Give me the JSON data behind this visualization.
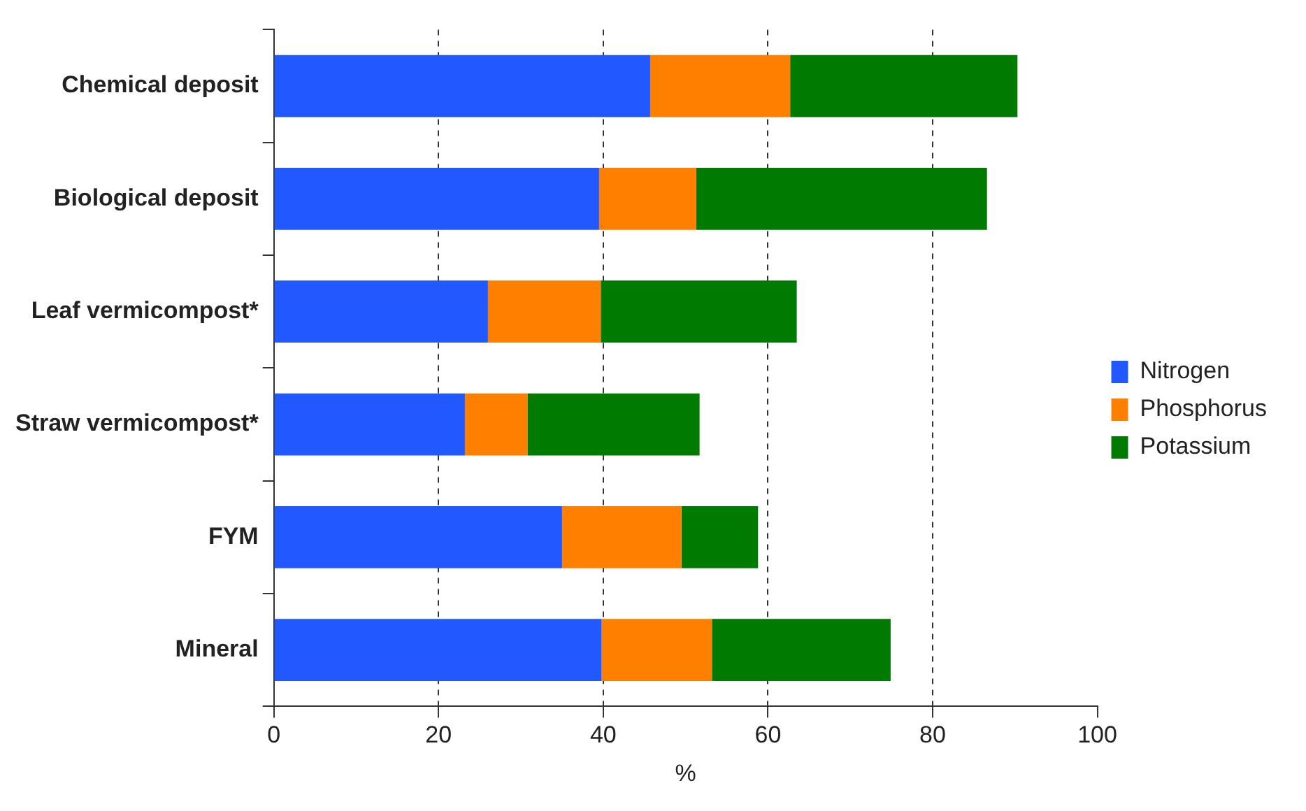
{
  "chart_data": {
    "type": "bar",
    "orientation": "horizontal",
    "stacked": true,
    "xlabel": "%",
    "categories": [
      "Chemical deposit",
      "Biological deposit",
      "Leaf vermicompost*",
      "Straw vermicompost*",
      "FYM",
      "Mineral"
    ],
    "series": [
      {
        "name": "Nitrogen",
        "color": "#2158ff",
        "values": [
          45.7,
          39.5,
          26,
          23.2,
          35,
          39.8
        ]
      },
      {
        "name": "Phosphorus",
        "color": "#ff8000",
        "values": [
          17,
          11.8,
          13.7,
          7.6,
          14.5,
          13.4
        ]
      },
      {
        "name": "Potassium",
        "color": "#007a00",
        "values": [
          27.6,
          35.3,
          23.8,
          20.9,
          9.3,
          21.7
        ]
      }
    ],
    "xlim": [
      0,
      100
    ],
    "xticks": [
      0,
      20,
      40,
      60,
      80,
      100
    ],
    "grid": "x",
    "legend": "right"
  }
}
